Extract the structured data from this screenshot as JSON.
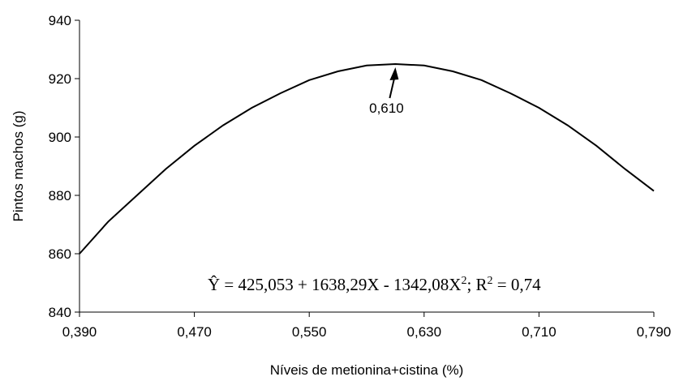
{
  "chart_data": {
    "type": "line",
    "title": "",
    "xlabel": "Níveis de metionina+cistina (%)",
    "ylabel": "Pintos machos (g)",
    "xlim": [
      0.39,
      0.79
    ],
    "ylim": [
      840,
      940
    ],
    "x_ticks": [
      "0,390",
      "0,470",
      "0,550",
      "0,630",
      "0,710",
      "0,790"
    ],
    "x_tick_values": [
      0.39,
      0.47,
      0.55,
      0.63,
      0.71,
      0.79
    ],
    "y_ticks": [
      "840",
      "860",
      "880",
      "900",
      "920",
      "940"
    ],
    "y_tick_values": [
      840,
      860,
      880,
      900,
      920,
      940
    ],
    "series": [
      {
        "x": [
          0.39,
          0.41,
          0.43,
          0.45,
          0.47,
          0.49,
          0.51,
          0.53,
          0.55,
          0.57,
          0.59,
          0.61,
          0.63,
          0.65,
          0.67,
          0.69,
          0.71,
          0.73,
          0.75,
          0.77,
          0.79
        ],
        "y": [
          860,
          871,
          880,
          889,
          897,
          904,
          910,
          915,
          919.5,
          922.5,
          924.5,
          925,
          924.5,
          922.5,
          919.5,
          915,
          910,
          904,
          897,
          889,
          881.5
        ],
        "color": "#000000"
      }
    ],
    "annotation": {
      "text": "0,610",
      "x": 0.61,
      "y": 925
    },
    "equation": {
      "y_symbol": "Ŷ",
      "body": " = 425,053 + 1638,29X - 1342,08X",
      "superscript": "2",
      "r_label": "; R",
      "r_superscript": "2",
      "r_value": " = 0,74"
    },
    "grid": false,
    "legend": "none"
  }
}
